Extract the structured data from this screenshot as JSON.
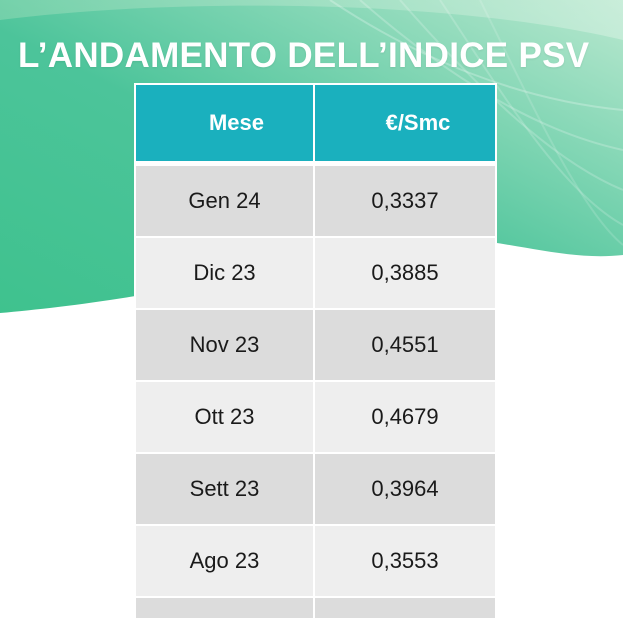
{
  "title": "L’ANDAMENTO DELL’INDICE PSV",
  "table": {
    "headers": [
      "Mese",
      "€/Smc"
    ],
    "rows": [
      [
        "Gen 24",
        "0,3337"
      ],
      [
        "Dic 23",
        "0,3885"
      ],
      [
        "Nov 23",
        "0,4551"
      ],
      [
        "Ott 23",
        "0,4679"
      ],
      [
        "Sett 23",
        "0,3964"
      ],
      [
        "Ago 23",
        "0,3553"
      ]
    ]
  },
  "colors": {
    "header_bg": "#1ab0be",
    "wave_dark": "#3dbf8e",
    "wave_light": "#c4ecd6",
    "row_dark": "#dcdcdc",
    "row_light": "#eeeeee"
  }
}
